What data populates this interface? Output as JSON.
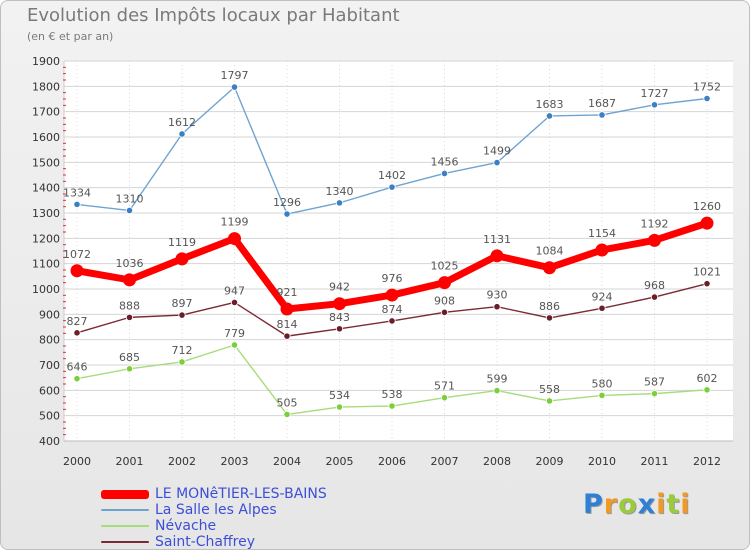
{
  "header": {
    "title": "Evolution des Impôts locaux par Habitant",
    "subtitle": "(en € et par an)"
  },
  "brand": {
    "letters": [
      "P",
      "r",
      "o",
      "x",
      "i",
      "t",
      "i"
    ],
    "letter_colors": [
      "#2f7fd6",
      "#f29a1f",
      "#9acb3c",
      "#2f7fd6",
      "#f29a1f",
      "#9acb3c",
      "#f29a1f"
    ]
  },
  "chart_data": {
    "type": "line",
    "x": [
      "2000",
      "2001",
      "2002",
      "2003",
      "2004",
      "2005",
      "2006",
      "2007",
      "2008",
      "2009",
      "2010",
      "2011",
      "2012"
    ],
    "ylim": [
      400,
      1900
    ],
    "yticks": [
      400,
      500,
      600,
      700,
      800,
      900,
      1000,
      1100,
      1200,
      1300,
      1400,
      1500,
      1600,
      1700,
      1800,
      1900
    ],
    "grid": true,
    "legend_position": "bottom-left",
    "series": [
      {
        "name": "LE MONêTIER-LES-BAINS",
        "color": "#ff0000",
        "highlight": true,
        "values": [
          1072,
          1036,
          1119,
          1199,
          921,
          942,
          976,
          1025,
          1131,
          1084,
          1154,
          1192,
          1260
        ],
        "labels": [
          "1072",
          "1036",
          "1119",
          "1199",
          "921",
          "942",
          "976",
          "1025",
          "1131",
          "1084",
          "1154",
          "1192",
          "1260"
        ]
      },
      {
        "name": "La Salle les Alpes",
        "color": "#6fa4d1",
        "marker_color": "#3b7fc4",
        "highlight": false,
        "values": [
          1334,
          1310,
          1612,
          1797,
          1296,
          1340,
          1402,
          1456,
          1499,
          1683,
          1687,
          1727,
          1752
        ],
        "labels": [
          "1334",
          "1310",
          "1612",
          "1797",
          "1296",
          "1340",
          "1402",
          "1456",
          "1499",
          "1683",
          "1687",
          "1727",
          "1752"
        ]
      },
      {
        "name": "Névache",
        "color": "#a8dc7a",
        "marker_color": "#7ccf3c",
        "highlight": false,
        "values": [
          646,
          685,
          712,
          779,
          505,
          534,
          538,
          571,
          599,
          558,
          580,
          587,
          602
        ],
        "labels": [
          "646",
          "685",
          "712",
          "779",
          "505",
          "534",
          "538",
          "571",
          "599",
          "558",
          "580",
          "587",
          "602"
        ]
      },
      {
        "name": "Saint-Chaffrey",
        "color": "#7a2a33",
        "marker_color": "#6a1e27",
        "highlight": false,
        "values": [
          827,
          888,
          897,
          947,
          814,
          843,
          874,
          908,
          930,
          886,
          924,
          968,
          1021
        ],
        "labels": [
          "827",
          "888",
          "897",
          "947",
          "814",
          "843",
          "874",
          "908",
          "930",
          "886",
          "924",
          "968",
          "1021"
        ]
      }
    ]
  }
}
